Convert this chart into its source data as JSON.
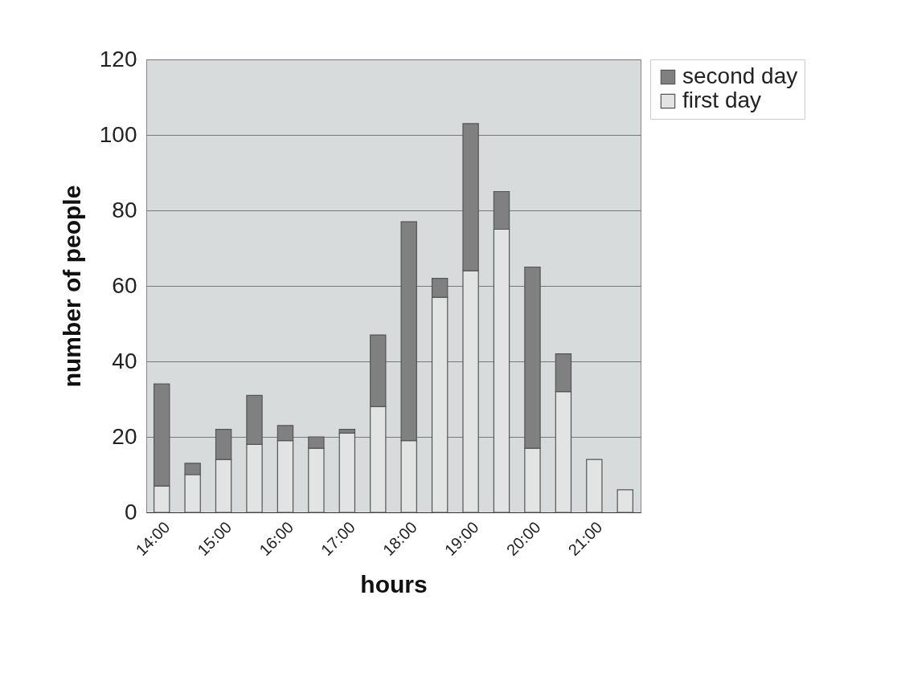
{
  "chart_data": {
    "type": "bar",
    "stacked": true,
    "xlabel": "hours",
    "ylabel": "number of people",
    "categories": [
      "14:00",
      null,
      "15:00",
      null,
      "16:00",
      null,
      "17:00",
      null,
      "18:00",
      null,
      "19:00",
      null,
      "20:00",
      null,
      "21:00",
      null
    ],
    "series": [
      {
        "name": "first day",
        "color": "#e2e4e4",
        "values": [
          7,
          10,
          14,
          18,
          19,
          17,
          21,
          28,
          19,
          57,
          64,
          75,
          17,
          32,
          14,
          6
        ]
      },
      {
        "name": "second day",
        "color": "#808080",
        "values": [
          27,
          3,
          8,
          13,
          4,
          3,
          1,
          19,
          58,
          5,
          39,
          10,
          48,
          10,
          null,
          null
        ]
      }
    ],
    "ylim": [
      0,
      120
    ],
    "yticks": [
      0,
      20,
      40,
      60,
      80,
      100,
      120
    ],
    "grid": "y",
    "legend": "right"
  }
}
